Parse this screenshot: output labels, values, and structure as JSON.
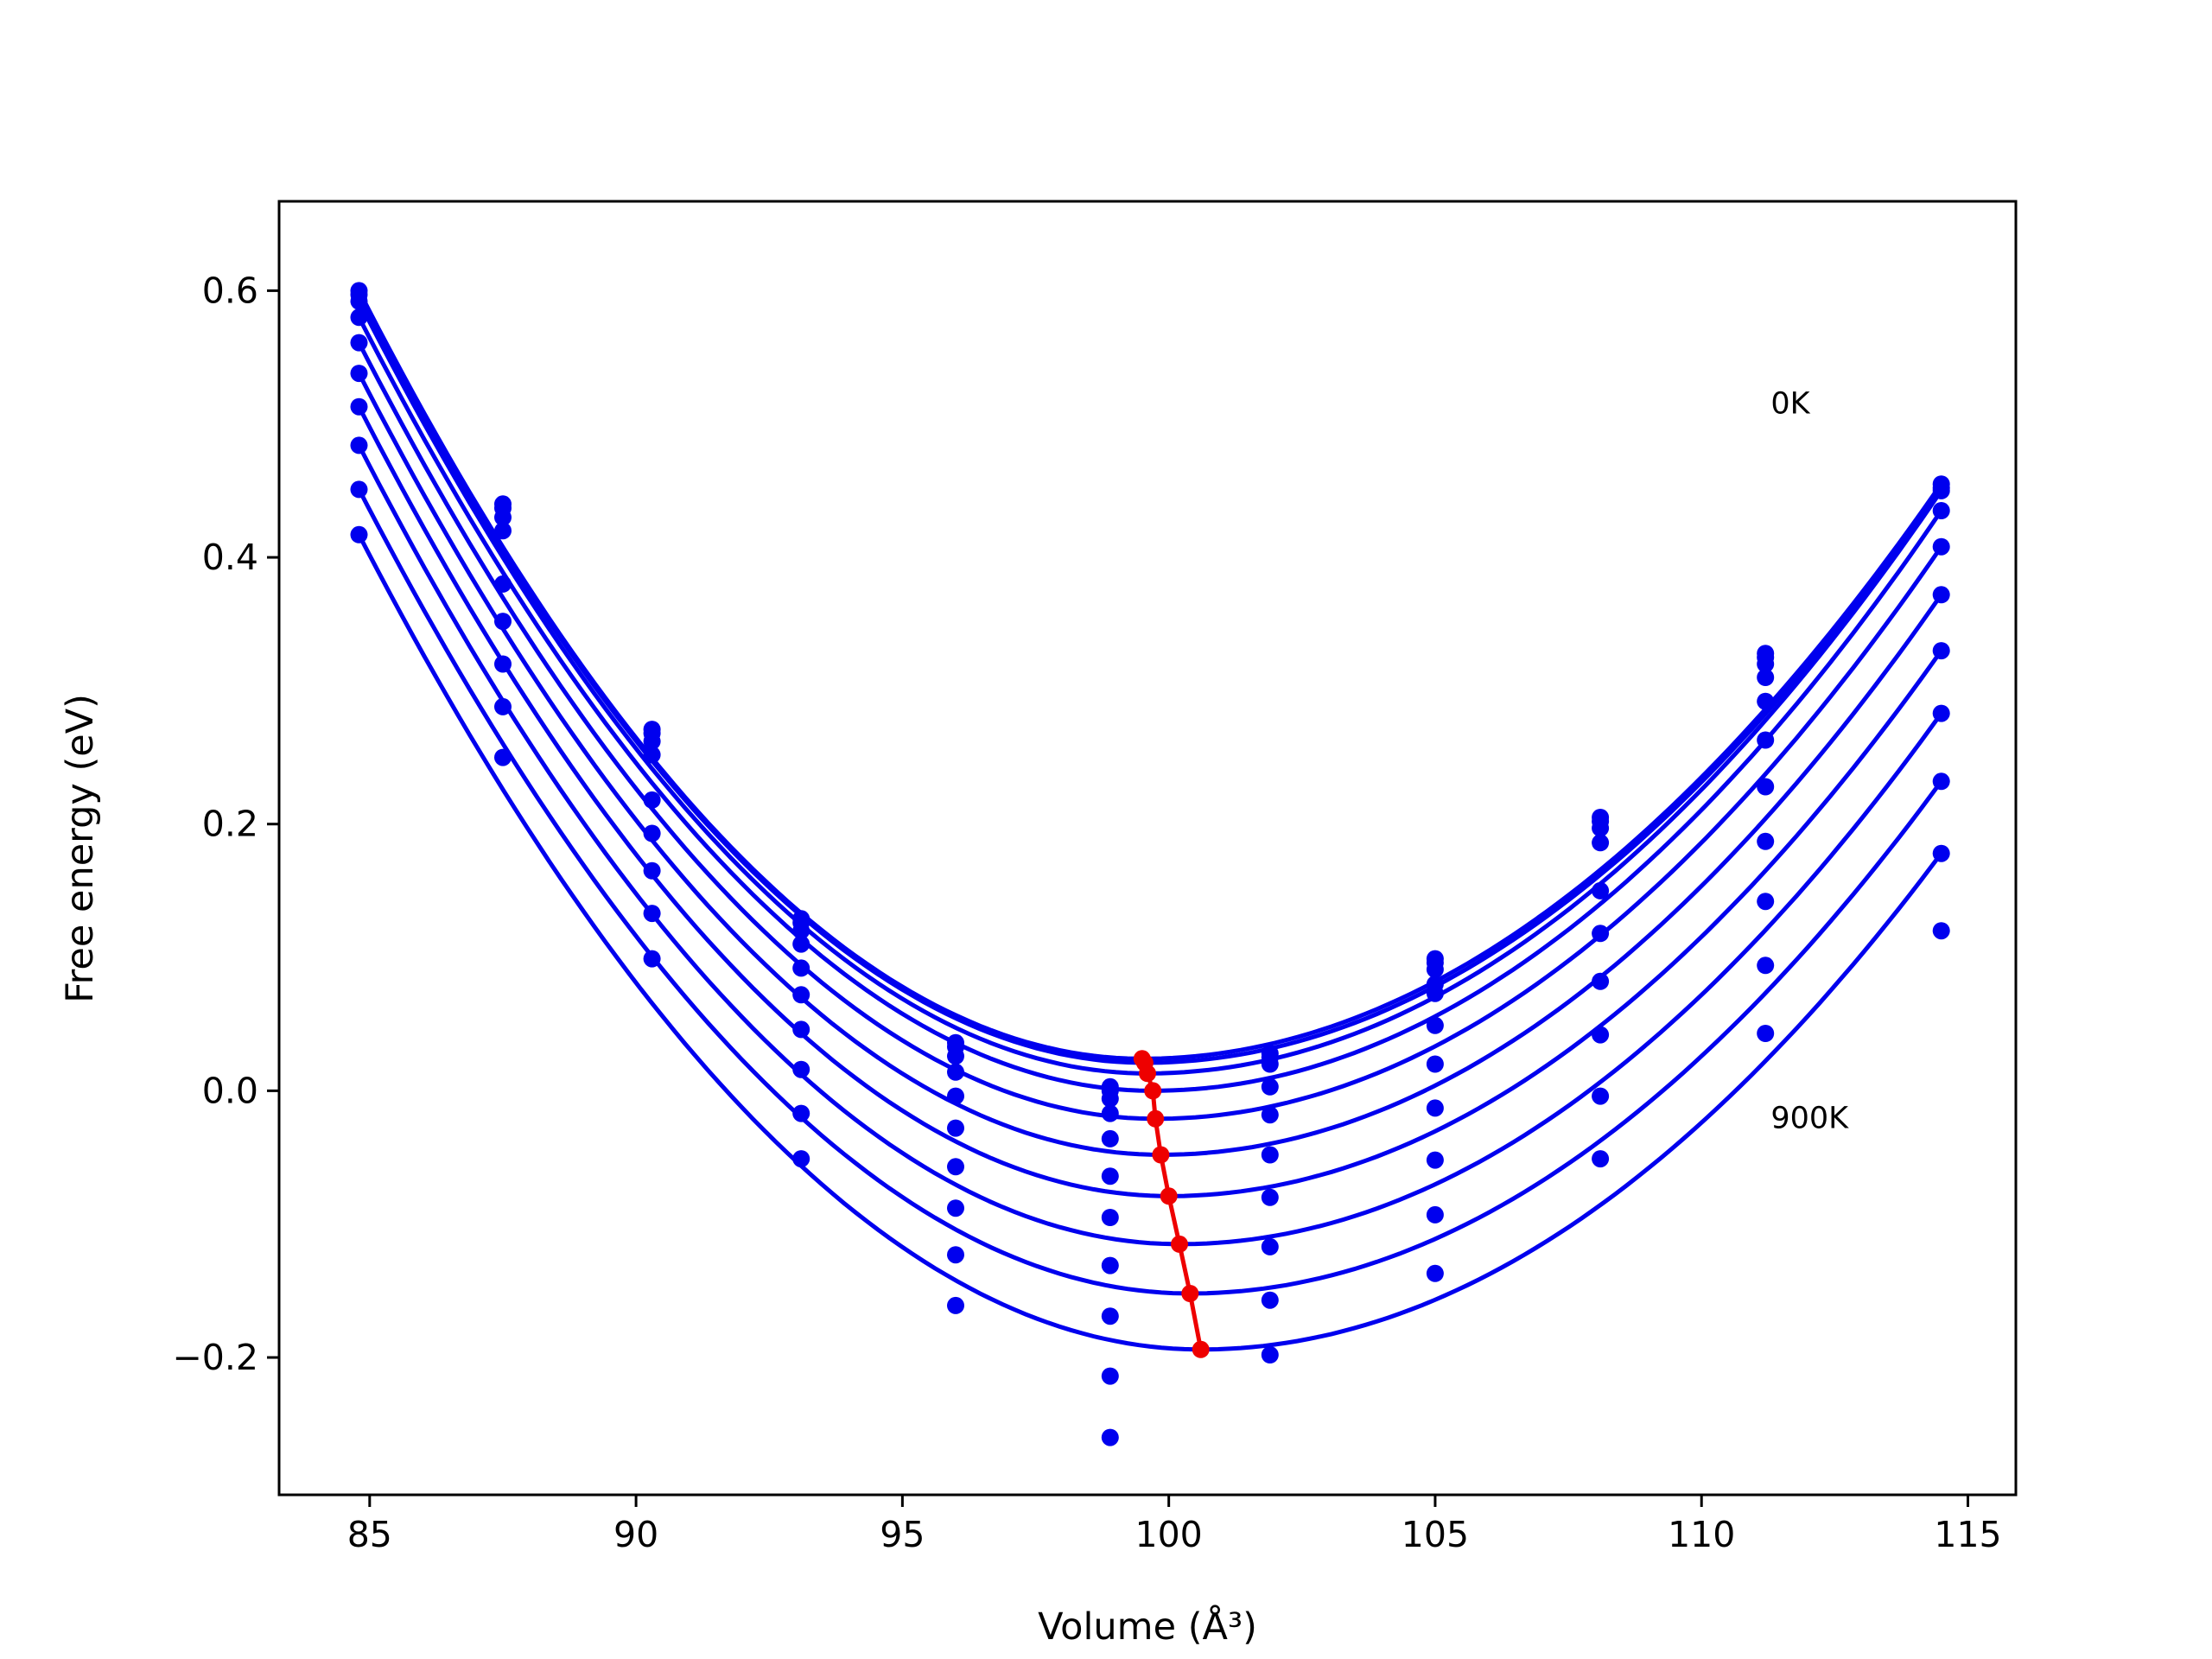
{
  "chart_data": {
    "type": "scatter",
    "xlabel": "Volume (Å³)",
    "ylabel": "Free energy (eV)",
    "xlim": [
      83.3,
      115.9
    ],
    "ylim": [
      -0.303,
      0.667
    ],
    "xticks": [
      85,
      90,
      95,
      100,
      105,
      110,
      115
    ],
    "yticks": [
      -0.2,
      0.0,
      0.2,
      0.4,
      0.6
    ],
    "xtick_labels": [
      "85",
      "90",
      "95",
      "100",
      "105",
      "110",
      "115"
    ],
    "ytick_labels": [
      "−0.2",
      "0.0",
      "0.2",
      "0.4",
      "0.6"
    ],
    "grid": false,
    "annotations": [
      {
        "text": "0K",
        "x": 111.3,
        "y": 0.508
      },
      {
        "text": "900K",
        "x": 111.3,
        "y": -0.028
      }
    ],
    "x": [
      84.8,
      87.5,
      90.3,
      93.1,
      96.0,
      98.9,
      101.9,
      105.0,
      108.1,
      111.2,
      114.5
    ],
    "series": [
      {
        "color": "#0000ee",
        "fit": {
          "v0": 99.5,
          "e0": 0.024
        },
        "points": [
          0.6,
          0.44,
          0.271,
          0.129,
          0.036,
          0.003,
          0.028,
          0.099,
          0.205,
          0.328,
          0.455
        ]
      },
      {
        "color": "#0000ee",
        "fit": {
          "v0": 99.55,
          "e0": 0.021
        },
        "points": [
          0.597,
          0.437,
          0.268,
          0.126,
          0.033,
          0.0,
          0.025,
          0.096,
          0.202,
          0.325,
          0.452
        ]
      },
      {
        "color": "#0000ee",
        "fit": {
          "v0": 99.6,
          "e0": 0.013
        },
        "points": [
          0.592,
          0.43,
          0.262,
          0.12,
          0.026,
          -0.006,
          0.02,
          0.091,
          0.197,
          0.32,
          0.45
        ]
      },
      {
        "color": "#0000ee",
        "fit": {
          "v0": 99.7,
          "e0": 0.0
        },
        "points": [
          0.58,
          0.42,
          0.252,
          0.11,
          0.014,
          -0.017,
          0.003,
          0.08,
          0.186,
          0.31,
          0.435
        ]
      },
      {
        "color": "#0000ee",
        "fit": {
          "v0": 99.75,
          "e0": -0.021
        },
        "points": [
          0.561,
          0.38,
          0.218,
          0.092,
          -0.004,
          -0.036,
          -0.018,
          0.073,
          0.15,
          0.292,
          0.408
        ]
      },
      {
        "color": "#0000ee",
        "fit": {
          "v0": 99.85,
          "e0": -0.048
        },
        "points": [
          0.538,
          0.352,
          0.193,
          0.072,
          -0.028,
          -0.064,
          -0.048,
          0.049,
          0.118,
          0.263,
          0.372
        ]
      },
      {
        "color": "#0000ee",
        "fit": {
          "v0": 100.0,
          "e0": -0.079
        },
        "points": [
          0.513,
          0.32,
          0.165,
          0.046,
          -0.057,
          -0.095,
          -0.08,
          0.02,
          0.082,
          0.228,
          0.33
        ]
      },
      {
        "color": "#0000ee",
        "fit": {
          "v0": 100.2,
          "e0": -0.115
        },
        "points": [
          0.484,
          0.288,
          0.133,
          0.016,
          -0.088,
          -0.131,
          -0.117,
          -0.013,
          0.042,
          0.187,
          0.283
        ]
      },
      {
        "color": "#0000ee",
        "fit": {
          "v0": 100.4,
          "e0": -0.152
        },
        "points": [
          0.451,
          0.25,
          0.099,
          -0.017,
          -0.123,
          -0.169,
          -0.157,
          -0.052,
          -0.004,
          0.142,
          0.232
        ]
      },
      {
        "color": "#0000ee",
        "fit": {
          "v0": 100.6,
          "e0": -0.194
        },
        "points": [
          0.417,
          null,
          null,
          -0.051,
          -0.161,
          -0.214,
          -0.198,
          -0.093,
          -0.051,
          0.094,
          0.178
        ]
      },
      {
        "color": "#0000ee",
        "fit": null,
        "points": [
          null,
          null,
          null,
          null,
          null,
          -0.26,
          null,
          -0.137,
          null,
          0.043,
          0.12
        ]
      }
    ],
    "minimum_curve": {
      "color": "#ee0000",
      "x": [
        99.5,
        99.55,
        99.6,
        99.7,
        99.75,
        99.85,
        100.0,
        100.2,
        100.4,
        100.6
      ],
      "y": [
        0.024,
        0.021,
        0.013,
        0.0,
        -0.021,
        -0.048,
        -0.079,
        -0.115,
        -0.152,
        -0.194
      ]
    }
  }
}
